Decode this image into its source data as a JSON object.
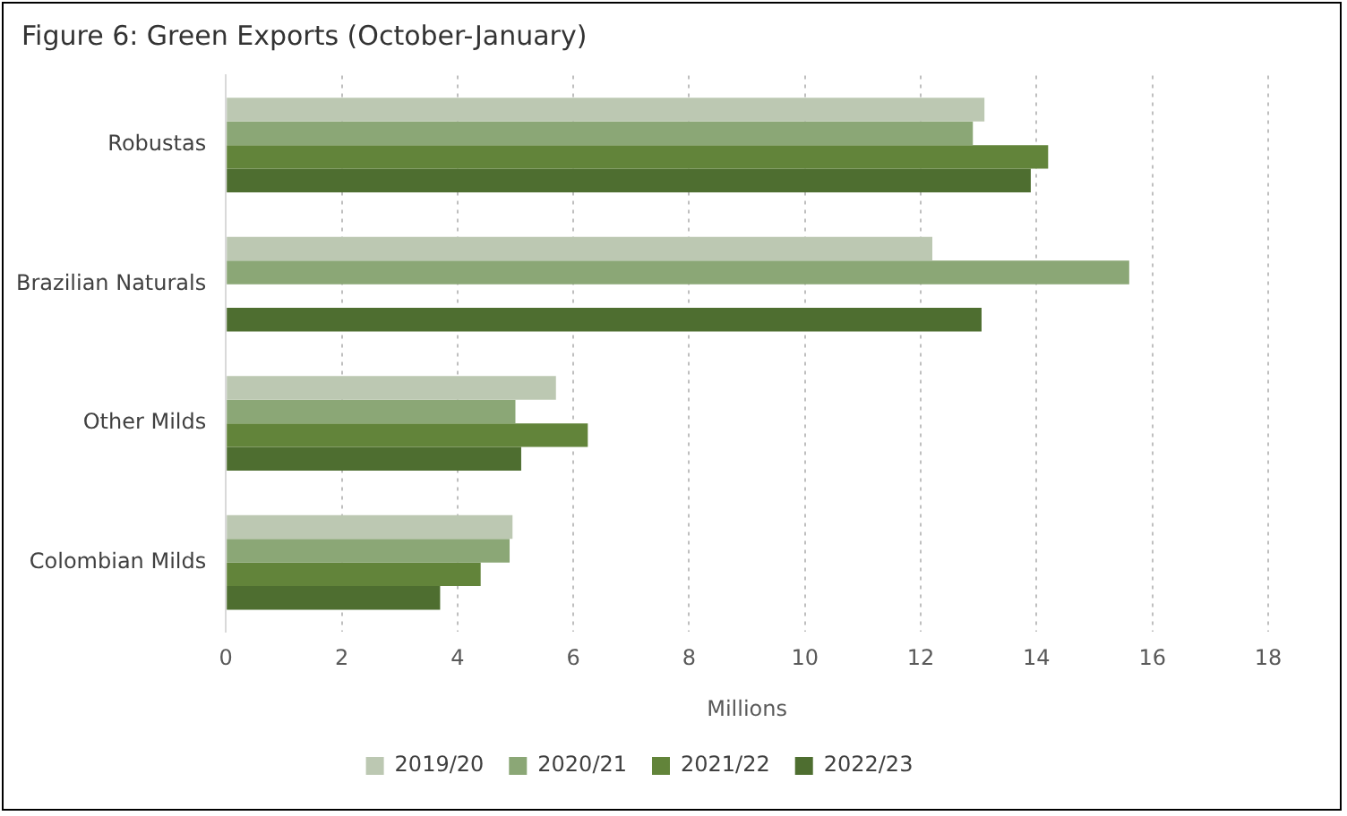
{
  "chart_data": {
    "type": "bar",
    "orientation": "horizontal",
    "title": "Figure 6: Green Exports (October-January)",
    "xlabel": "Millions",
    "categories": [
      "Robustas",
      "Brazilian Naturals",
      "Other Milds",
      "Colombian Milds"
    ],
    "series": [
      {
        "name": "2019/20",
        "color": "#bcc8b2",
        "values": [
          13.1,
          12.2,
          5.7,
          4.95
        ]
      },
      {
        "name": "2020/21",
        "color": "#8ba776",
        "values": [
          12.9,
          15.6,
          5.0,
          4.9
        ]
      },
      {
        "name": "2021/22",
        "color": "#62843a",
        "values": [
          14.2,
          null,
          6.25,
          4.4
        ]
      },
      {
        "name": "2022/23",
        "color": "#4e6e30",
        "values": [
          13.9,
          13.05,
          5.1,
          3.7
        ]
      }
    ],
    "xlim": [
      0,
      18
    ],
    "xticks": [
      0,
      2,
      4,
      6,
      8,
      10,
      12,
      14,
      16,
      18
    ],
    "grid": "x",
    "legend": "bottom"
  }
}
